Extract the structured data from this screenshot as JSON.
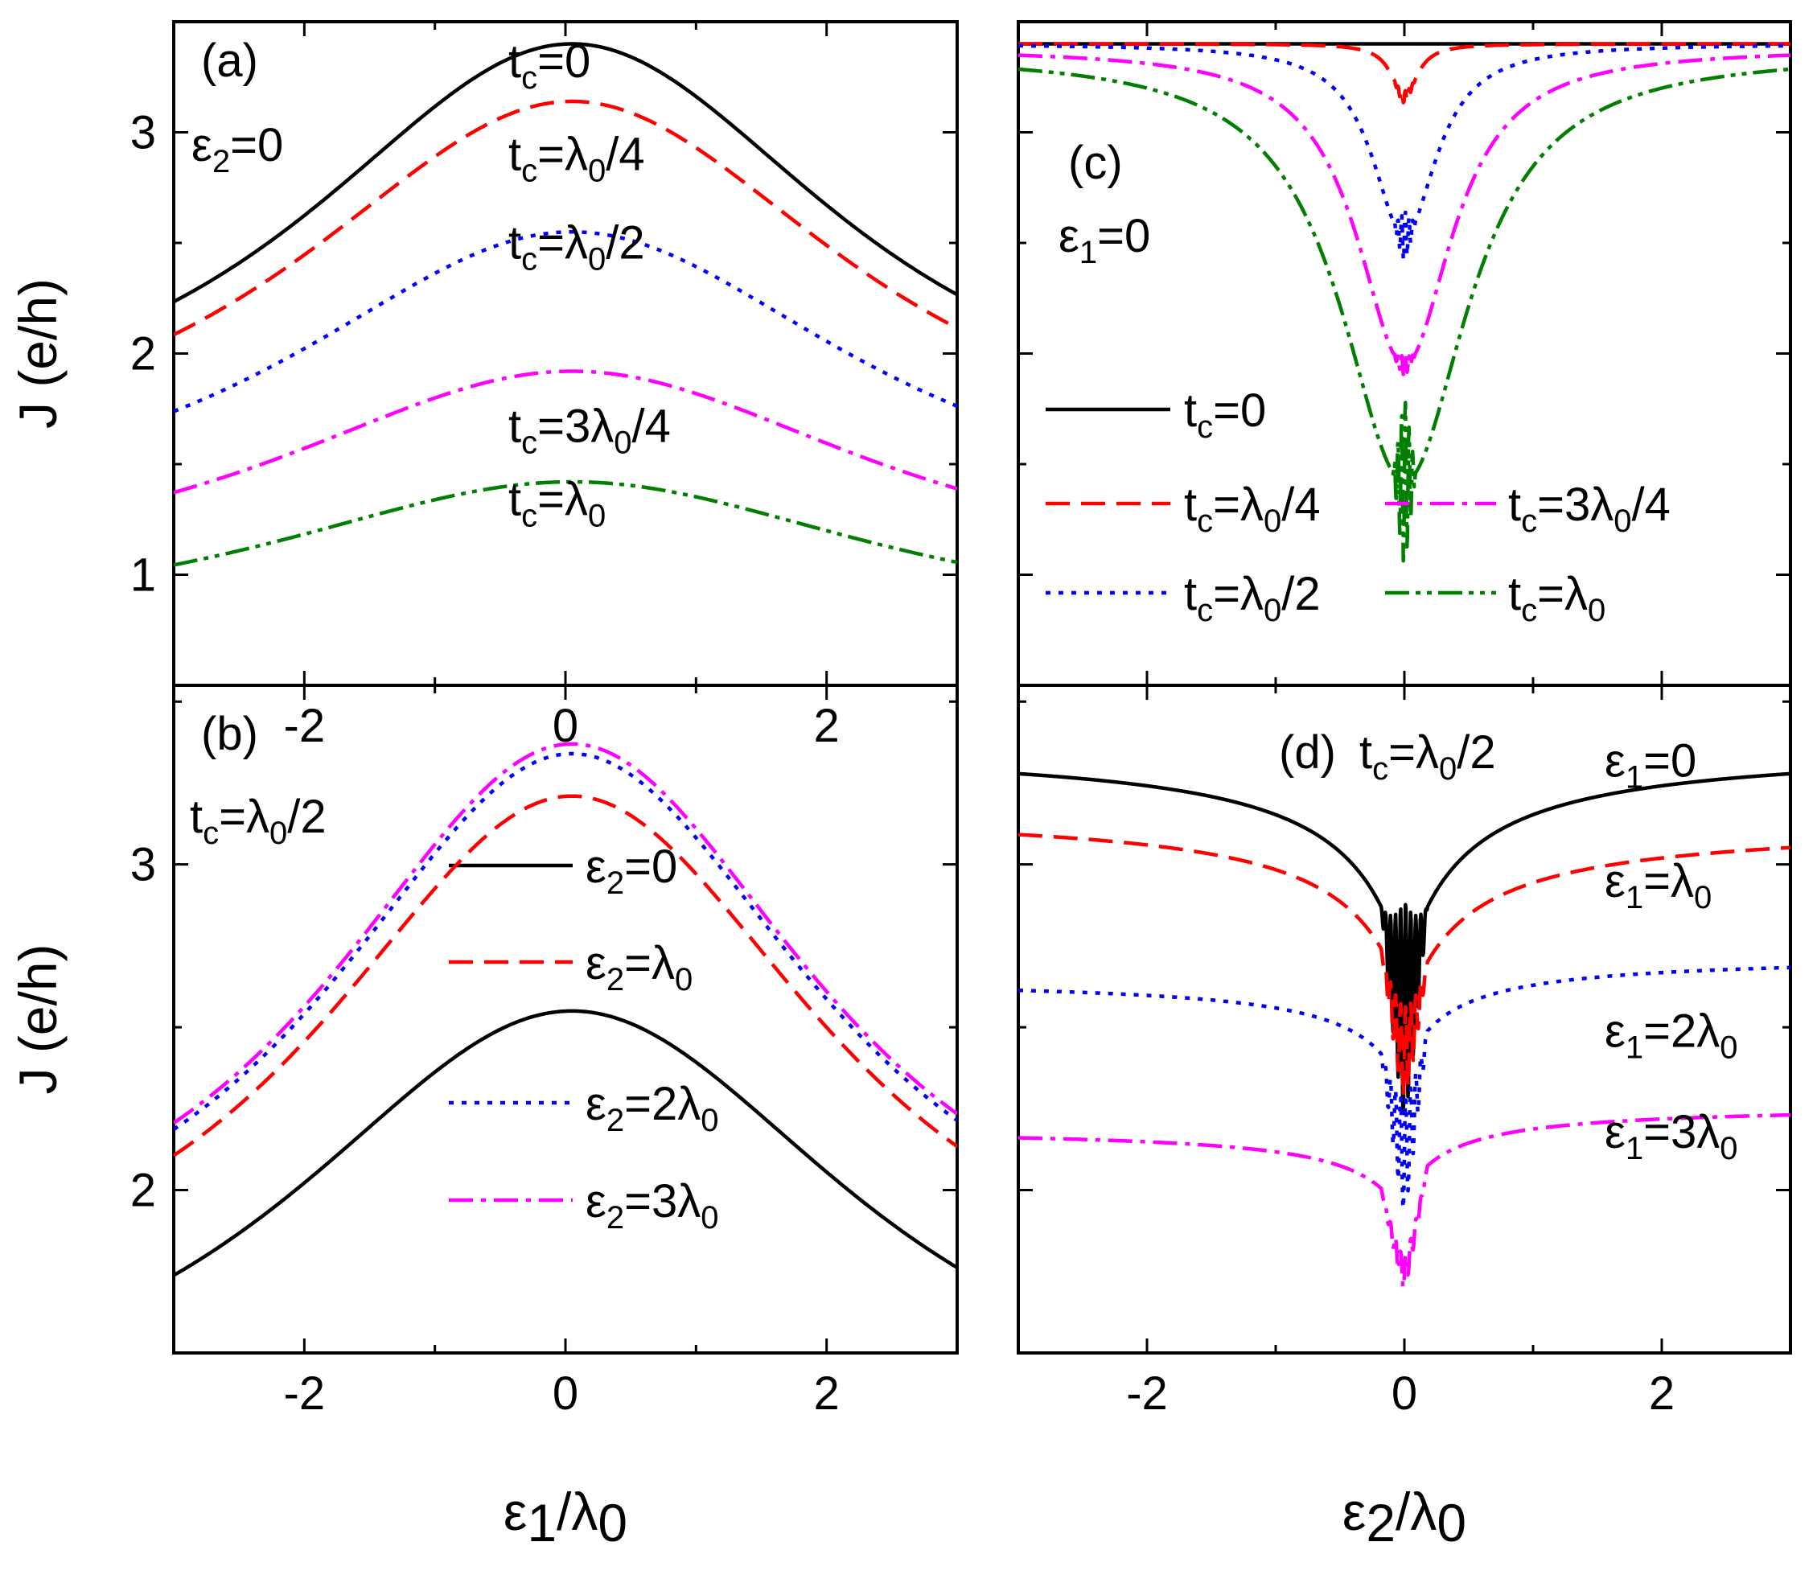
{
  "chart_data": [
    {
      "panel": "a",
      "type": "line",
      "panel_label": "(a)",
      "condition": {
        "base": "ε",
        "sub": "2",
        "tail": "=0"
      },
      "xlim": [
        -3,
        3
      ],
      "ylim": [
        0.5,
        3.5
      ],
      "xticks": [
        -2,
        0,
        2
      ],
      "yticks": [
        1,
        2,
        3
      ],
      "xtick_labels": [
        "-2",
        "0",
        "2"
      ],
      "ytick_labels": [
        "1",
        "2",
        "3"
      ],
      "ylabel": "J (e/h)",
      "series": [
        {
          "name": "t_c=0",
          "label": {
            "base": "t",
            "sub": "c",
            "tail": "=0"
          },
          "peak": 3.4,
          "edge": 2.25,
          "width": 1.7,
          "color": "#000000",
          "dash": "",
          "label_y": 3.25
        },
        {
          "name": "t_c=λ0/4",
          "label": {
            "base": "t",
            "sub": "c",
            "tail": "=λ",
            "sub2": "0",
            "tail2": "/4"
          },
          "peak": 3.14,
          "edge": 2.1,
          "width": 1.75,
          "color": "#ff0000",
          "dash": "30,14",
          "label_y": 2.83
        },
        {
          "name": "t_c=λ0/2",
          "label": {
            "base": "t",
            "sub": "c",
            "tail": "=λ",
            "sub2": "0",
            "tail2": "/2"
          },
          "peak": 2.55,
          "edge": 1.75,
          "width": 1.8,
          "color": "#0000ff",
          "dash": "6,10",
          "label_y": 2.43
        },
        {
          "name": "t_c=3λ0/4",
          "label": {
            "base": "t",
            "sub": "c",
            "tail": "=3λ",
            "sub2": "0",
            "tail2": "/4"
          },
          "peak": 1.92,
          "edge": 1.38,
          "width": 1.9,
          "color": "#ff00ff",
          "dash": "30,10,6,10",
          "label_y": 1.6
        },
        {
          "name": "t_c=λ0",
          "label": {
            "base": "t",
            "sub": "c",
            "tail": "=λ",
            "sub2": "0",
            "tail2": ""
          },
          "peak": 1.42,
          "edge": 1.05,
          "width": 1.95,
          "color": "#007f00",
          "dash": "30,8,6,8,6,8",
          "label_y": 1.27
        }
      ]
    },
    {
      "panel": "b",
      "type": "line",
      "panel_label": "(b)",
      "condition": {
        "base": "t",
        "sub": "c",
        "tail": "=λ",
        "sub2": "0",
        "tail2": "/2"
      },
      "xlim": [
        -3,
        3
      ],
      "ylim": [
        1.5,
        3.55
      ],
      "xticks": [
        -2,
        0,
        2
      ],
      "yticks": [
        2,
        3
      ],
      "xtick_labels": [
        "-2",
        "0",
        "2"
      ],
      "ytick_labels": [
        "2",
        "3"
      ],
      "xlabel": {
        "base": "ε",
        "sub": "1",
        "tail": "/λ",
        "sub2": "0",
        "tail2": ""
      },
      "ylabel": "J (e/h)",
      "series": [
        {
          "name": "ε2=0",
          "label": {
            "base": "ε",
            "sub": "2",
            "tail": "=0"
          },
          "peak": 2.55,
          "edge": 1.75,
          "width": 1.8,
          "color": "#000000",
          "dash": ""
        },
        {
          "name": "ε2=λ0",
          "label": {
            "base": "ε",
            "sub": "2",
            "tail": "=λ",
            "sub2": "0",
            "tail2": ""
          },
          "peak": 3.21,
          "edge": 2.12,
          "width": 1.6,
          "color": "#ff0000",
          "dash": "30,14"
        },
        {
          "name": "ε2=2λ0",
          "label": {
            "base": "ε",
            "sub": "2",
            "tail": "=2λ",
            "sub2": "0",
            "tail2": ""
          },
          "peak": 3.34,
          "edge": 2.2,
          "width": 1.55,
          "color": "#0000ff",
          "dash": "6,10"
        },
        {
          "name": "ε2=3λ0",
          "label": {
            "base": "ε",
            "sub": "2",
            "tail": "=3λ",
            "sub2": "0",
            "tail2": ""
          },
          "peak": 3.37,
          "edge": 2.22,
          "width": 1.55,
          "color": "#ff00ff",
          "dash": "30,10,6,10"
        }
      ]
    },
    {
      "panel": "c",
      "type": "line",
      "panel_label": "(c)",
      "condition": {
        "base": "ε",
        "sub": "1",
        "tail": "=0"
      },
      "xlim": [
        -3,
        3
      ],
      "ylim": [
        0.5,
        3.5
      ],
      "xticks": [
        -2,
        0,
        2
      ],
      "yticks": [
        1,
        2,
        3
      ],
      "series": [
        {
          "name": "t_c=0",
          "label": {
            "base": "t",
            "sub": "c",
            "tail": "=0"
          },
          "plateau": 3.4,
          "dip": 3.4,
          "gamma": 1,
          "min": 3.4,
          "osc": 0,
          "color": "#000000",
          "dash": ""
        },
        {
          "name": "t_c=λ0/4",
          "label": {
            "base": "t",
            "sub": "c",
            "tail": "=λ",
            "sub2": "0",
            "tail2": "/4"
          },
          "plateau": 3.4,
          "dip": 0.24,
          "gamma": 0.12,
          "min": 3.16,
          "osc": 0.03,
          "color": "#ff0000",
          "dash": "30,14"
        },
        {
          "name": "t_c=λ0/2",
          "label": {
            "base": "t",
            "sub": "c",
            "tail": "=λ",
            "sub2": "0",
            "tail2": "/2"
          },
          "plateau": 3.4,
          "dip": 0.9,
          "gamma": 0.3,
          "min": 2.53,
          "osc": 0.12,
          "color": "#0000ff",
          "dash": "6,10"
        },
        {
          "name": "t_c=3λ0/4",
          "label": {
            "base": "t",
            "sub": "c",
            "tail": "=3λ",
            "sub2": "0",
            "tail2": "/4"
          },
          "plateau": 3.38,
          "dip": 1.45,
          "gamma": 0.45,
          "min": 1.95,
          "osc": 0.05,
          "color": "#ff00ff",
          "dash": "30,10,6,10"
        },
        {
          "name": "t_c=λ0",
          "label": {
            "base": "t",
            "sub": "c",
            "tail": "=λ",
            "sub2": "0",
            "tail2": ""
          },
          "plateau": 3.36,
          "dip": 1.95,
          "gamma": 0.6,
          "min": 1.42,
          "osc": 0.4,
          "color": "#007f00",
          "dash": "30,8,6,8,6,8"
        }
      ]
    },
    {
      "panel": "d",
      "type": "line",
      "panel_label": "(d)",
      "condition": {
        "base": "t",
        "sub": "c",
        "tail": "=λ",
        "sub2": "0",
        "tail2": "/2"
      },
      "xlim": [
        -3,
        3
      ],
      "ylim": [
        1.5,
        3.55
      ],
      "xticks": [
        -2,
        0,
        2
      ],
      "yticks": [
        2,
        3
      ],
      "xtick_labels": [
        "-2",
        "0",
        "2"
      ],
      "xlabel": {
        "base": "ε",
        "sub": "2",
        "tail": "/λ",
        "sub2": "0",
        "tail2": ""
      },
      "series": [
        {
          "name": "ε1=0",
          "label": {
            "base": "ε",
            "sub": "1",
            "tail": "=0"
          },
          "left": 3.37,
          "right": 3.37,
          "dip": 0.7,
          "gamma": 0.45,
          "min": 2.55,
          "osc": 0.35,
          "color": "#000000",
          "dash": "",
          "label_y": 3.27
        },
        {
          "name": "ε1=λ0",
          "label": {
            "base": "ε",
            "sub": "1",
            "tail": "=λ",
            "sub2": "0",
            "tail2": ""
          },
          "left": 3.17,
          "right": 3.13,
          "dip": 0.6,
          "gamma": 0.45,
          "min": 2.42,
          "osc": 0.15,
          "color": "#ff0000",
          "dash": "30,14",
          "label_y": 2.9
        },
        {
          "name": "ε1=2λ0",
          "label": {
            "base": "ε",
            "sub": "1",
            "tail": "=2λ",
            "sub2": "0",
            "tail2": ""
          },
          "left": 2.65,
          "right": 2.72,
          "dip": 0.35,
          "gamma": 0.35,
          "min": 2.1,
          "osc": 0.18,
          "color": "#0000ff",
          "dash": "6,10",
          "label_y": 2.44
        },
        {
          "name": "ε1=3λ0",
          "label": {
            "base": "ε",
            "sub": "1",
            "tail": "=3λ",
            "sub2": "0",
            "tail2": ""
          },
          "left": 2.19,
          "right": 2.26,
          "dip": 0.28,
          "gamma": 0.35,
          "min": 1.74,
          "osc": 0.05,
          "color": "#ff00ff",
          "dash": "30,10,6,10",
          "label_y": 2.13
        }
      ]
    }
  ]
}
